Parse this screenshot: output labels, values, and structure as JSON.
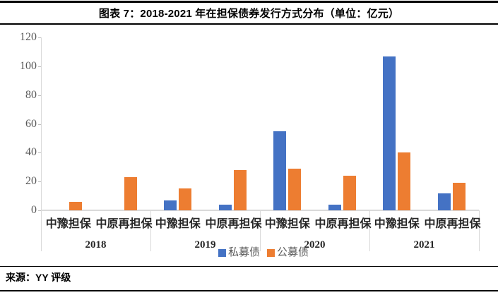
{
  "header": {
    "title": "图表 7：2018-2021 年在担保债券发行方式分布（单位：亿元）"
  },
  "footer": {
    "source": "来源：YY 评级"
  },
  "chart_data": {
    "type": "bar",
    "title": "2018-2021 年在担保债券发行方式分布",
    "unit": "亿元",
    "ylim": [
      0,
      120
    ],
    "yticks": [
      0,
      20,
      40,
      60,
      80,
      100,
      120
    ],
    "grid": false,
    "legend_position": "bottom",
    "groups": [
      "2018",
      "2019",
      "2020",
      "2021"
    ],
    "categories_per_group": [
      "中豫担保",
      "中原再担保"
    ],
    "categories": [
      "2018 中豫担保",
      "2018 中原再担保",
      "2019 中豫担保",
      "2019 中原再担保",
      "2020 中豫担保",
      "2020 中原再担保",
      "2021 中豫担保",
      "2021 中原再担保"
    ],
    "series": [
      {
        "name": "私募债",
        "color": "#4472C4",
        "values": [
          0,
          0,
          7,
          4,
          55,
          4,
          107,
          12
        ]
      },
      {
        "name": "公募债",
        "color": "#ED7D31",
        "values": [
          6,
          23,
          15,
          28,
          29,
          24,
          40,
          19
        ]
      }
    ],
    "axis_color": "#D9D9D9",
    "tick_label_color": "#595959",
    "category_label_color": "#262626"
  }
}
